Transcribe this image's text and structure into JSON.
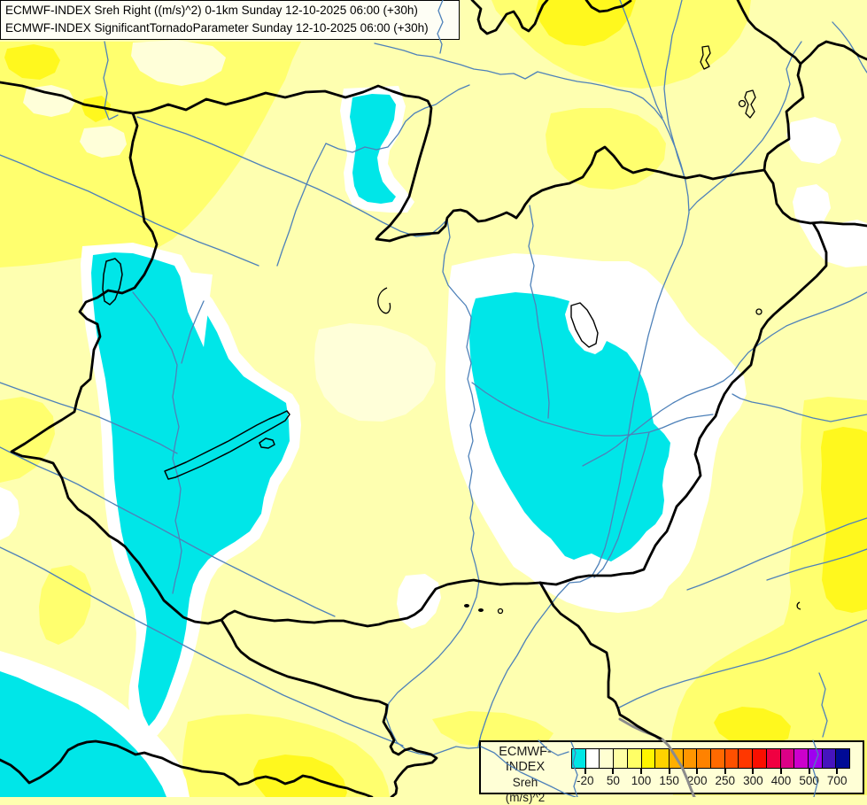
{
  "header": {
    "line1": "ECMWF-INDEX Sreh Right ((m/s)^2) 0-1km Sunday 12-10-2025 06:00 (+30h)",
    "line2": "ECMWF-INDEX SignificantTornadoParameter Sunday 12-10-2025 06:00 (+30h)"
  },
  "legend": {
    "title": "ECMWF-INDEX",
    "parameter": "Sreh",
    "units": "(m/s)^2",
    "swatches": [
      "#00E6E6",
      "#FFFFFF",
      "#FFFFD2",
      "#FFFFA5",
      "#FFFF66",
      "#FFF500",
      "#FFD200",
      "#FFAF00",
      "#FF9600",
      "#FF8200",
      "#FF6900",
      "#FF5000",
      "#FF3700",
      "#FA0F00",
      "#F00041",
      "#DC0087",
      "#CC00CC",
      "#9E00F0",
      "#4614BE",
      "#000A96"
    ],
    "ticks": [
      {
        "label": "-20",
        "boundary": 1
      },
      {
        "label": "50",
        "boundary": 3
      },
      {
        "label": "100",
        "boundary": 5
      },
      {
        "label": "150",
        "boundary": 7
      },
      {
        "label": "200",
        "boundary": 9
      },
      {
        "label": "250",
        "boundary": 11
      },
      {
        "label": "300",
        "boundary": 13
      },
      {
        "label": "400",
        "boundary": 15
      },
      {
        "label": "500",
        "boundary": 17
      },
      {
        "label": "700",
        "boundary": 19
      }
    ]
  },
  "map": {
    "palette": {
      "base_pale_yellow": "#FEFFB0",
      "cream": "#FFFFD9",
      "medium_yellow": "#FFFF6E",
      "bright_yellow": "#FFF81E",
      "cyan": "#00E6E8",
      "white": "#FFFFFF",
      "river_blue": "#4E81B9",
      "danube_gray": "#8C8C8C",
      "border_black": "#000000"
    }
  }
}
